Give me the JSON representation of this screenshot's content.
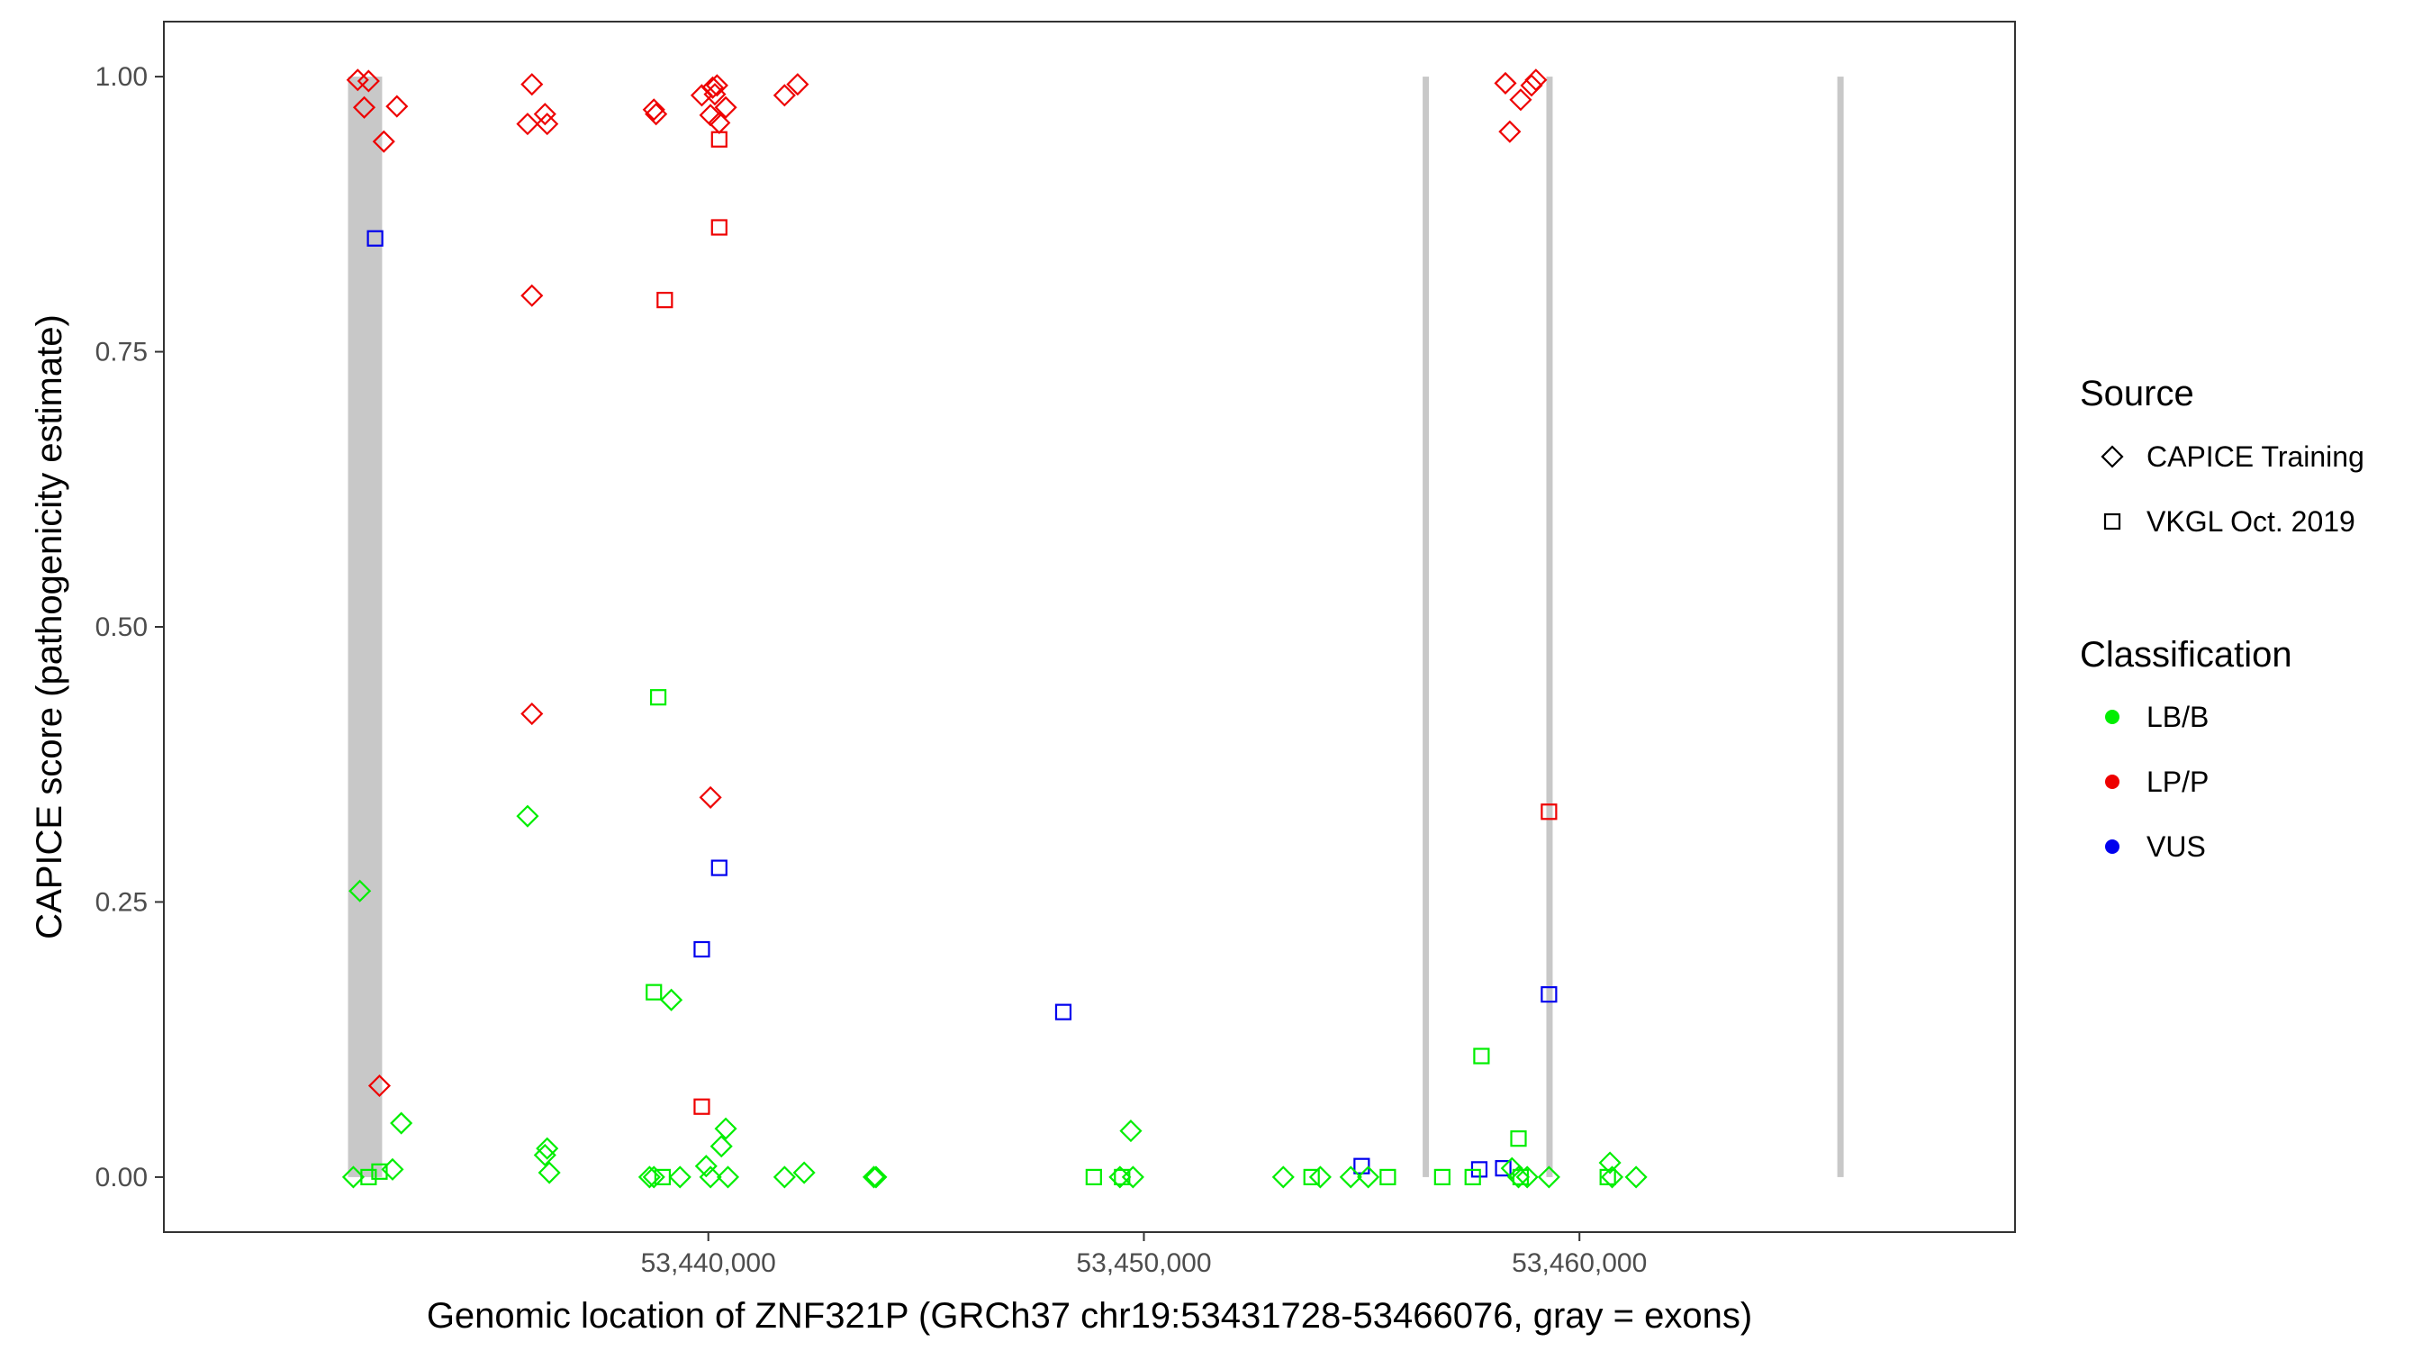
{
  "chart_data": {
    "type": "scatter",
    "xlabel": "Genomic location of ZNF321P (GRCh37 chr19:53431728-53466076, gray = exons)",
    "ylabel": "CAPICE score (pathogenicity estimate)",
    "xlim": [
      53427500,
      53470000
    ],
    "ylim": [
      -0.05,
      1.05
    ],
    "x_ticks": [
      53440000,
      53450000,
      53460000
    ],
    "x_tick_labels": [
      "53,440,000",
      "53,450,000",
      "53,460,000"
    ],
    "y_ticks": [
      0,
      0.25,
      0.5,
      0.75,
      1
    ],
    "y_tick_labels": [
      "0.00",
      "0.25",
      "0.50",
      "0.75",
      "1.00"
    ],
    "grid": false,
    "legend_position": "right",
    "colors": {
      "LB/B": "#00ee00",
      "LP/P": "#ee0000",
      "VUS": "#0000ee"
    },
    "exons": [
      {
        "start": 53431728,
        "end": 53432511
      },
      {
        "start": 53456400,
        "end": 53456450
      },
      {
        "start": 53459240,
        "end": 53459290
      },
      {
        "start": 53465920,
        "end": 53465970
      }
    ],
    "legend": {
      "source_title": "Source",
      "source_items": [
        {
          "label": "CAPICE Training",
          "shape": "diamond"
        },
        {
          "label": "VKGL Oct. 2019",
          "shape": "square"
        }
      ],
      "class_title": "Classification",
      "class_items": [
        {
          "label": "LB/B",
          "class": "LB/B"
        },
        {
          "label": "LP/P",
          "class": "LP/P"
        },
        {
          "label": "VUS",
          "class": "VUS"
        }
      ]
    },
    "points": [
      {
        "x": 53431950,
        "y": 0.997,
        "shape": "diamond",
        "class": "LP/P"
      },
      {
        "x": 53432200,
        "y": 0.996,
        "shape": "diamond",
        "class": "LP/P"
      },
      {
        "x": 53432100,
        "y": 0.972,
        "shape": "diamond",
        "class": "LP/P"
      },
      {
        "x": 53432850,
        "y": 0.973,
        "shape": "diamond",
        "class": "LP/P"
      },
      {
        "x": 53432550,
        "y": 0.941,
        "shape": "diamond",
        "class": "LP/P"
      },
      {
        "x": 53432450,
        "y": 0.083,
        "shape": "diamond",
        "class": "LP/P"
      },
      {
        "x": 53435950,
        "y": 0.993,
        "shape": "diamond",
        "class": "LP/P"
      },
      {
        "x": 53435850,
        "y": 0.957,
        "shape": "diamond",
        "class": "LP/P"
      },
      {
        "x": 53436250,
        "y": 0.966,
        "shape": "diamond",
        "class": "LP/P"
      },
      {
        "x": 53436300,
        "y": 0.957,
        "shape": "diamond",
        "class": "LP/P"
      },
      {
        "x": 53435950,
        "y": 0.801,
        "shape": "diamond",
        "class": "LP/P"
      },
      {
        "x": 53435950,
        "y": 0.421,
        "shape": "diamond",
        "class": "LP/P"
      },
      {
        "x": 53438750,
        "y": 0.97,
        "shape": "diamond",
        "class": "LP/P"
      },
      {
        "x": 53438800,
        "y": 0.966,
        "shape": "diamond",
        "class": "LP/P"
      },
      {
        "x": 53439850,
        "y": 0.983,
        "shape": "diamond",
        "class": "LP/P"
      },
      {
        "x": 53440100,
        "y": 0.99,
        "shape": "diamond",
        "class": "LP/P"
      },
      {
        "x": 53440200,
        "y": 0.992,
        "shape": "diamond",
        "class": "LP/P"
      },
      {
        "x": 53440150,
        "y": 0.984,
        "shape": "diamond",
        "class": "LP/P"
      },
      {
        "x": 53440050,
        "y": 0.965,
        "shape": "diamond",
        "class": "LP/P"
      },
      {
        "x": 53440400,
        "y": 0.972,
        "shape": "diamond",
        "class": "LP/P"
      },
      {
        "x": 53440250,
        "y": 0.958,
        "shape": "diamond",
        "class": "LP/P"
      },
      {
        "x": 53440050,
        "y": 0.345,
        "shape": "diamond",
        "class": "LP/P"
      },
      {
        "x": 53441750,
        "y": 0.983,
        "shape": "diamond",
        "class": "LP/P"
      },
      {
        "x": 53442050,
        "y": 0.993,
        "shape": "diamond",
        "class": "LP/P"
      },
      {
        "x": 53458300,
        "y": 0.994,
        "shape": "diamond",
        "class": "LP/P"
      },
      {
        "x": 53458900,
        "y": 0.992,
        "shape": "diamond",
        "class": "LP/P"
      },
      {
        "x": 53459000,
        "y": 0.997,
        "shape": "diamond",
        "class": "LP/P"
      },
      {
        "x": 53458650,
        "y": 0.979,
        "shape": "diamond",
        "class": "LP/P"
      },
      {
        "x": 53458400,
        "y": 0.95,
        "shape": "diamond",
        "class": "LP/P"
      },
      {
        "x": 53440250,
        "y": 0.943,
        "shape": "square",
        "class": "LP/P"
      },
      {
        "x": 53440250,
        "y": 0.863,
        "shape": "square",
        "class": "LP/P"
      },
      {
        "x": 53439000,
        "y": 0.797,
        "shape": "square",
        "class": "LP/P"
      },
      {
        "x": 53439850,
        "y": 0.064,
        "shape": "square",
        "class": "LP/P"
      },
      {
        "x": 53459300,
        "y": 0.332,
        "shape": "square",
        "class": "LP/P"
      },
      {
        "x": 53432350,
        "y": 0.853,
        "shape": "square",
        "class": "VUS"
      },
      {
        "x": 53440250,
        "y": 0.281,
        "shape": "square",
        "class": "VUS"
      },
      {
        "x": 53439850,
        "y": 0.207,
        "shape": "square",
        "class": "VUS"
      },
      {
        "x": 53448150,
        "y": 0.15,
        "shape": "square",
        "class": "VUS"
      },
      {
        "x": 53459300,
        "y": 0.166,
        "shape": "square",
        "class": "VUS"
      },
      {
        "x": 53455000,
        "y": 0.01,
        "shape": "square",
        "class": "VUS"
      },
      {
        "x": 53457700,
        "y": 0.007,
        "shape": "square",
        "class": "VUS"
      },
      {
        "x": 53458250,
        "y": 0.008,
        "shape": "square",
        "class": "VUS"
      },
      {
        "x": 53438850,
        "y": 0.436,
        "shape": "square",
        "class": "LB/B"
      },
      {
        "x": 53438750,
        "y": 0.168,
        "shape": "square",
        "class": "LB/B"
      },
      {
        "x": 53457750,
        "y": 0.11,
        "shape": "square",
        "class": "LB/B"
      },
      {
        "x": 53458600,
        "y": 0.035,
        "shape": "square",
        "class": "LB/B"
      },
      {
        "x": 53432200,
        "y": 0.0,
        "shape": "square",
        "class": "LB/B"
      },
      {
        "x": 53432450,
        "y": 0.005,
        "shape": "square",
        "class": "LB/B"
      },
      {
        "x": 53438950,
        "y": 0.0,
        "shape": "square",
        "class": "LB/B"
      },
      {
        "x": 53448850,
        "y": 0.0,
        "shape": "square",
        "class": "LB/B"
      },
      {
        "x": 53449500,
        "y": 0.0,
        "shape": "square",
        "class": "LB/B"
      },
      {
        "x": 53453850,
        "y": 0.0,
        "shape": "square",
        "class": "LB/B"
      },
      {
        "x": 53455600,
        "y": 0.0,
        "shape": "square",
        "class": "LB/B"
      },
      {
        "x": 53456850,
        "y": 0.0,
        "shape": "square",
        "class": "LB/B"
      },
      {
        "x": 53457550,
        "y": 0.0,
        "shape": "square",
        "class": "LB/B"
      },
      {
        "x": 53458650,
        "y": 0.0,
        "shape": "square",
        "class": "LB/B"
      },
      {
        "x": 53460650,
        "y": 0.0,
        "shape": "square",
        "class": "LB/B"
      },
      {
        "x": 53432000,
        "y": 0.26,
        "shape": "diamond",
        "class": "LB/B"
      },
      {
        "x": 53435850,
        "y": 0.328,
        "shape": "diamond",
        "class": "LB/B"
      },
      {
        "x": 53439150,
        "y": 0.161,
        "shape": "diamond",
        "class": "LB/B"
      },
      {
        "x": 53432950,
        "y": 0.049,
        "shape": "diamond",
        "class": "LB/B"
      },
      {
        "x": 53436300,
        "y": 0.026,
        "shape": "diamond",
        "class": "LB/B"
      },
      {
        "x": 53436250,
        "y": 0.02,
        "shape": "diamond",
        "class": "LB/B"
      },
      {
        "x": 53436350,
        "y": 0.004,
        "shape": "diamond",
        "class": "LB/B"
      },
      {
        "x": 53440400,
        "y": 0.044,
        "shape": "diamond",
        "class": "LB/B"
      },
      {
        "x": 53440300,
        "y": 0.028,
        "shape": "diamond",
        "class": "LB/B"
      },
      {
        "x": 53439950,
        "y": 0.01,
        "shape": "diamond",
        "class": "LB/B"
      },
      {
        "x": 53449700,
        "y": 0.042,
        "shape": "diamond",
        "class": "LB/B"
      },
      {
        "x": 53460700,
        "y": 0.013,
        "shape": "diamond",
        "class": "LB/B"
      },
      {
        "x": 53458450,
        "y": 0.008,
        "shape": "diamond",
        "class": "LB/B"
      },
      {
        "x": 53431850,
        "y": 0.0,
        "shape": "diamond",
        "class": "LB/B"
      },
      {
        "x": 53432750,
        "y": 0.007,
        "shape": "diamond",
        "class": "LB/B"
      },
      {
        "x": 53438650,
        "y": 0.0,
        "shape": "diamond",
        "class": "LB/B"
      },
      {
        "x": 53438750,
        "y": 0.0,
        "shape": "diamond",
        "class": "LB/B"
      },
      {
        "x": 53439350,
        "y": 0.0,
        "shape": "diamond",
        "class": "LB/B"
      },
      {
        "x": 53440050,
        "y": 0.0,
        "shape": "diamond",
        "class": "LB/B"
      },
      {
        "x": 53440450,
        "y": 0.0,
        "shape": "diamond",
        "class": "LB/B"
      },
      {
        "x": 53441750,
        "y": 0.0,
        "shape": "diamond",
        "class": "LB/B"
      },
      {
        "x": 53442200,
        "y": 0.004,
        "shape": "diamond",
        "class": "LB/B"
      },
      {
        "x": 53443800,
        "y": 0.0,
        "shape": "diamond",
        "class": "LB/B"
      },
      {
        "x": 53443850,
        "y": 0.0,
        "shape": "diamond",
        "class": "LB/B"
      },
      {
        "x": 53449450,
        "y": 0.0,
        "shape": "diamond",
        "class": "LB/B"
      },
      {
        "x": 53449750,
        "y": 0.0,
        "shape": "diamond",
        "class": "LB/B"
      },
      {
        "x": 53453200,
        "y": 0.0,
        "shape": "diamond",
        "class": "LB/B"
      },
      {
        "x": 53454050,
        "y": 0.0,
        "shape": "diamond",
        "class": "LB/B"
      },
      {
        "x": 53454750,
        "y": 0.0,
        "shape": "diamond",
        "class": "LB/B"
      },
      {
        "x": 53455150,
        "y": 0.0,
        "shape": "diamond",
        "class": "LB/B"
      },
      {
        "x": 53458600,
        "y": 0.0,
        "shape": "diamond",
        "class": "LB/B"
      },
      {
        "x": 53458800,
        "y": 0.0,
        "shape": "diamond",
        "class": "LB/B"
      },
      {
        "x": 53459300,
        "y": 0.0,
        "shape": "diamond",
        "class": "LB/B"
      },
      {
        "x": 53460750,
        "y": 0.0,
        "shape": "diamond",
        "class": "LB/B"
      },
      {
        "x": 53461300,
        "y": 0.0,
        "shape": "diamond",
        "class": "LB/B"
      }
    ]
  }
}
